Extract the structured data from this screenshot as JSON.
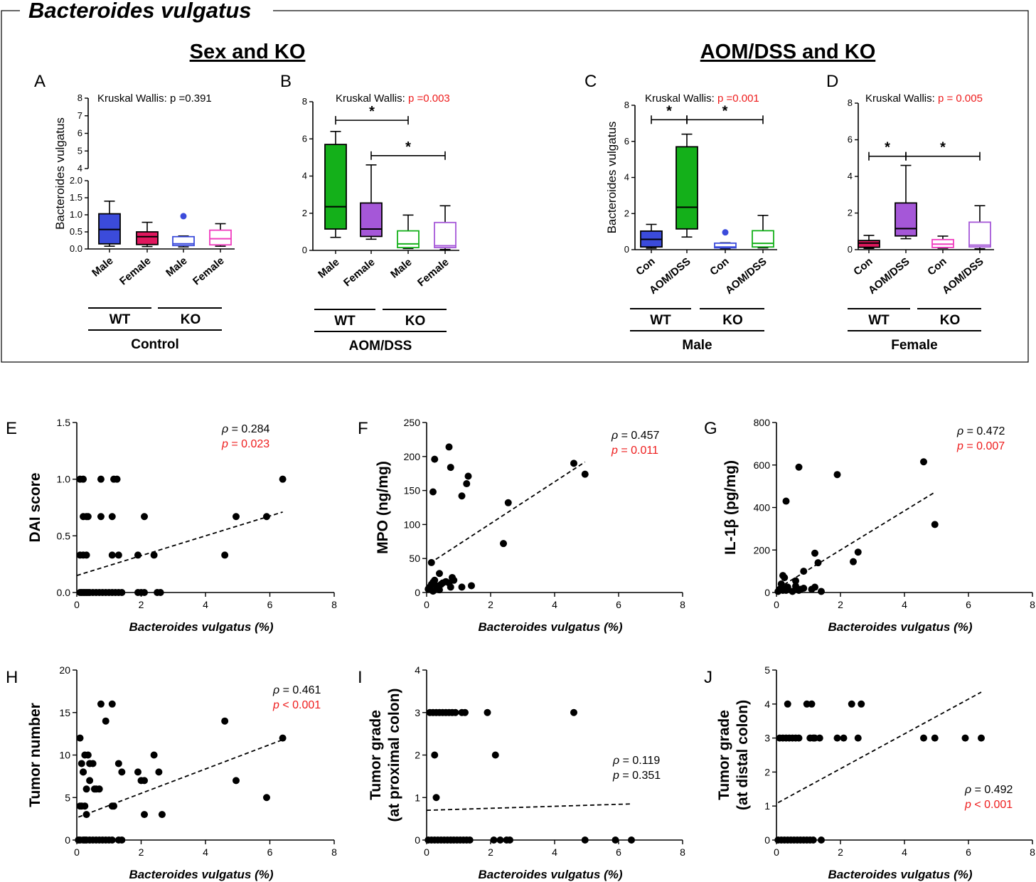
{
  "figure": {
    "title": "Bacteroides vulgatus",
    "section_left": "Sex and KO",
    "section_right": "AOM/DSS and KO"
  },
  "colors": {
    "wt_male": "#3b4bdb",
    "wt_female": "#e0185e",
    "green": "#14b01a",
    "purple": "#a557d8",
    "ko_female": "#f03cbf",
    "red": "#ee1c1c"
  },
  "chart_data": [
    {
      "panel": "A",
      "type": "box",
      "title": "Kruskal Wallis: p =0.391",
      "stat_label": "Kruskal Wallis: ",
      "p_text": "p =0.391",
      "significant": false,
      "ylabel": "Bacteroides vulgatus",
      "broken_axis": true,
      "ylim_lower": [
        0,
        2.0
      ],
      "ylim_upper": [
        4,
        8
      ],
      "yticks_lower": [
        "0.0",
        "0.5",
        "1.0",
        "1.5",
        "2.0"
      ],
      "yticks_upper": [
        "4",
        "5",
        "6",
        "7",
        "8"
      ],
      "categories": [
        "Male",
        "Female",
        "Male",
        "Female"
      ],
      "groups": [
        "WT",
        "KO"
      ],
      "condition": "Control",
      "boxes": [
        {
          "min": 0.08,
          "q1": 0.15,
          "median": 0.57,
          "q3": 1.03,
          "max": 1.4,
          "outliers": [],
          "color": "wt_male",
          "filled": true
        },
        {
          "min": 0.07,
          "q1": 0.13,
          "median": 0.36,
          "q3": 0.5,
          "max": 0.78,
          "outliers": [],
          "color": "wt_female",
          "filled": true
        },
        {
          "min": 0.06,
          "q1": 0.1,
          "median": 0.15,
          "q3": 0.36,
          "max": 0.38,
          "outliers": [
            0.96
          ],
          "color": "wt_male",
          "filled": false
        },
        {
          "min": 0.08,
          "q1": 0.12,
          "median": 0.3,
          "q3": 0.55,
          "max": 0.74,
          "outliers": [],
          "color": "ko_female",
          "filled": false
        }
      ],
      "brackets": []
    },
    {
      "panel": "B",
      "type": "box",
      "title": "Kruskal Wallis: p =0.003",
      "stat_label": "Kruskal Wallis: ",
      "p_text": "p =0.003",
      "significant": true,
      "ylabel": "",
      "broken_axis": false,
      "ylim": [
        0,
        8
      ],
      "yticks": [
        "0",
        "2",
        "4",
        "6",
        "8"
      ],
      "categories": [
        "Male",
        "Female",
        "Male",
        "Female"
      ],
      "groups": [
        "WT",
        "KO"
      ],
      "condition": "AOM/DSS",
      "boxes": [
        {
          "min": 0.7,
          "q1": 1.15,
          "median": 2.35,
          "q3": 5.7,
          "max": 6.4,
          "outliers": [],
          "color": "green",
          "filled": true
        },
        {
          "min": 0.6,
          "q1": 0.75,
          "median": 1.15,
          "q3": 2.55,
          "max": 4.6,
          "outliers": [],
          "color": "purple",
          "filled": true
        },
        {
          "min": 0.1,
          "q1": 0.15,
          "median": 0.35,
          "q3": 1.05,
          "max": 1.9,
          "outliers": [],
          "color": "green",
          "filled": false
        },
        {
          "min": 0.05,
          "q1": 0.15,
          "median": 0.25,
          "q3": 1.5,
          "max": 2.4,
          "outliers": [],
          "color": "purple",
          "filled": false
        }
      ],
      "brackets": [
        {
          "from": 0,
          "to": 2,
          "y": 7.0,
          "label": "*"
        },
        {
          "from": 1,
          "to": 3,
          "y": 5.1,
          "label": "*"
        }
      ]
    },
    {
      "panel": "C",
      "type": "box",
      "title": "Kruskal Wallis: p =0.001",
      "stat_label": "Kruskal Wallis: ",
      "p_text": "p =0.001",
      "significant": true,
      "ylabel": "Bacteroides vulgatus",
      "broken_axis": false,
      "ylim": [
        0,
        8
      ],
      "yticks": [
        "0",
        "2",
        "4",
        "6",
        "8"
      ],
      "categories": [
        "Con",
        "AOM/DSS",
        "Con",
        "AOM/DSS"
      ],
      "groups": [
        "WT",
        "KO"
      ],
      "condition": "Male",
      "boxes": [
        {
          "min": 0.08,
          "q1": 0.15,
          "median": 0.57,
          "q3": 1.03,
          "max": 1.4,
          "outliers": [],
          "color": "wt_male",
          "filled": true
        },
        {
          "min": 0.7,
          "q1": 1.15,
          "median": 2.35,
          "q3": 5.7,
          "max": 6.4,
          "outliers": [],
          "color": "green",
          "filled": true
        },
        {
          "min": 0.06,
          "q1": 0.1,
          "median": 0.15,
          "q3": 0.36,
          "max": 0.38,
          "outliers": [
            0.96
          ],
          "color": "wt_male",
          "filled": false
        },
        {
          "min": 0.1,
          "q1": 0.15,
          "median": 0.35,
          "q3": 1.05,
          "max": 1.9,
          "outliers": [],
          "color": "green",
          "filled": false
        }
      ],
      "brackets": [
        {
          "from": 0,
          "to": 1,
          "y": 7.2,
          "label": "*"
        },
        {
          "from": 1,
          "to": 3,
          "y": 7.2,
          "label": "*"
        }
      ]
    },
    {
      "panel": "D",
      "type": "box",
      "title": "Kruskal Wallis: p = 0.005",
      "stat_label": "Kruskal Wallis: ",
      "p_text": "p = 0.005",
      "significant": true,
      "ylabel": "",
      "broken_axis": false,
      "ylim": [
        0,
        8
      ],
      "yticks": [
        "0",
        "2",
        "4",
        "6",
        "8"
      ],
      "categories": [
        "Con",
        "AOM/DSS",
        "Con",
        "AOM/DSS"
      ],
      "groups": [
        "WT",
        "KO"
      ],
      "condition": "Female",
      "boxes": [
        {
          "min": 0.07,
          "q1": 0.13,
          "median": 0.36,
          "q3": 0.5,
          "max": 0.78,
          "outliers": [],
          "color": "wt_female",
          "filled": true
        },
        {
          "min": 0.6,
          "q1": 0.75,
          "median": 1.15,
          "q3": 2.55,
          "max": 4.6,
          "outliers": [],
          "color": "purple",
          "filled": true
        },
        {
          "min": 0.08,
          "q1": 0.12,
          "median": 0.3,
          "q3": 0.55,
          "max": 0.74,
          "outliers": [],
          "color": "ko_female",
          "filled": false
        },
        {
          "min": 0.05,
          "q1": 0.15,
          "median": 0.25,
          "q3": 1.5,
          "max": 2.4,
          "outliers": [],
          "color": "purple",
          "filled": false
        }
      ],
      "brackets": [
        {
          "from": 0,
          "to": 1,
          "y": 5.1,
          "label": "*"
        },
        {
          "from": 1,
          "to": 3,
          "y": 5.1,
          "label": "*"
        }
      ]
    },
    {
      "panel": "E",
      "type": "scatter",
      "xlabel": "Bacteroides vulgatus (%)",
      "ylabel": "DAI score",
      "xlim": [
        0,
        8
      ],
      "ylim": [
        0,
        1.5
      ],
      "xticks": [
        0,
        2,
        4,
        6,
        8
      ],
      "yticks": [
        0,
        0.5,
        1.0,
        1.5
      ],
      "ytick_labels": [
        "0.0",
        "0.5",
        "1.0",
        "1.5"
      ],
      "rho": "0.284",
      "p": "0.023",
      "p_significant": true,
      "p_op": "=",
      "fit": [
        [
          0,
          0.15
        ],
        [
          6.4,
          0.71
        ]
      ],
      "x": [
        0.1,
        0.15,
        0.2,
        0.25,
        0.3,
        0.35,
        0.4,
        0.5,
        0.6,
        0.7,
        0.8,
        0.9,
        1.0,
        1.1,
        1.2,
        1.3,
        1.4,
        1.9,
        2.0,
        2.1,
        2.5,
        2.6,
        0.1,
        0.2,
        0.3,
        1.1,
        1.3,
        1.9,
        2.4,
        4.6,
        0.2,
        0.3,
        0.35,
        0.75,
        1.1,
        2.1,
        4.95,
        5.9,
        0.1,
        0.2,
        0.75,
        1.15,
        1.25,
        6.4
      ],
      "y": [
        0,
        0,
        0,
        0,
        0,
        0,
        0,
        0,
        0,
        0,
        0,
        0,
        0,
        0,
        0,
        0,
        0,
        0,
        0,
        0,
        0,
        0,
        0.33,
        0.33,
        0.33,
        0.33,
        0.33,
        0.33,
        0.33,
        0.33,
        0.67,
        0.67,
        0.67,
        0.67,
        0.67,
        0.67,
        0.67,
        0.67,
        1,
        1,
        1,
        1,
        1,
        1
      ]
    },
    {
      "panel": "F",
      "type": "scatter",
      "xlabel": "Bacteroides vulgatus (%)",
      "ylabel": "MPO (ng/mg)",
      "xlim": [
        0,
        8
      ],
      "ylim": [
        0,
        250
      ],
      "xticks": [
        0,
        2,
        4,
        6,
        8
      ],
      "yticks": [
        0,
        50,
        100,
        150,
        200,
        250
      ],
      "ytick_labels": [
        "0",
        "50",
        "100",
        "150",
        "200",
        "250"
      ],
      "rho": "0.457",
      "p": "0.011",
      "p_significant": true,
      "p_op": "=",
      "fit": [
        [
          0.1,
          43
        ],
        [
          4.95,
          192
        ]
      ],
      "x": [
        0.05,
        0.1,
        0.15,
        0.2,
        0.25,
        0.3,
        0.35,
        0.4,
        0.45,
        0.5,
        0.6,
        0.7,
        0.75,
        0.8,
        0.85,
        1.1,
        1.4,
        0.2,
        0.4,
        0.15,
        0.25,
        0.2,
        0.7,
        0.75,
        1.1,
        1.25,
        1.3,
        2.4,
        2.55,
        4.6,
        4.95
      ],
      "y": [
        5,
        8,
        12,
        15,
        18,
        10,
        6,
        28,
        12,
        14,
        16,
        14,
        8,
        22,
        18,
        8,
        10,
        2,
        4,
        44,
        196,
        148,
        214,
        184,
        142,
        160,
        171,
        72,
        132,
        190,
        174
      ]
    },
    {
      "panel": "G",
      "type": "scatter",
      "xlabel": "Bacteroides vulgatus (%)",
      "ylabel": "IL-1β (pg/mg)",
      "xlim": [
        0,
        8
      ],
      "ylim": [
        0,
        800
      ],
      "xticks": [
        0,
        2,
        4,
        6,
        8
      ],
      "yticks": [
        0,
        200,
        400,
        600,
        800
      ],
      "ytick_labels": [
        "0",
        "200",
        "400",
        "600",
        "800"
      ],
      "rho": "0.472",
      "p": "0.007",
      "p_significant": true,
      "p_op": "=",
      "fit": [
        [
          0.05,
          20
        ],
        [
          4.95,
          472
        ]
      ],
      "x": [
        0.05,
        0.1,
        0.15,
        0.2,
        0.25,
        0.3,
        0.35,
        0.5,
        0.6,
        0.7,
        0.75,
        0.85,
        1.1,
        1.2,
        1.4,
        0.2,
        0.3,
        0.35,
        0.6,
        0.85,
        1.2,
        1.3,
        2.4,
        2.55,
        4.95,
        0.3,
        0.7,
        1.9,
        4.6
      ],
      "y": [
        5,
        15,
        40,
        10,
        70,
        20,
        25,
        5,
        30,
        10,
        15,
        20,
        15,
        25,
        5,
        80,
        10,
        25,
        55,
        100,
        185,
        140,
        145,
        190,
        320,
        430,
        590,
        555,
        615
      ]
    },
    {
      "panel": "H",
      "type": "scatter",
      "xlabel": "Bacteroides vulgatus (%)",
      "ylabel": "Tumor number",
      "xlim": [
        0,
        8
      ],
      "ylim": [
        0,
        20
      ],
      "xticks": [
        0,
        2,
        4,
        6,
        8
      ],
      "yticks": [
        0,
        5,
        10,
        15,
        20
      ],
      "ytick_labels": [
        "0",
        "5",
        "10",
        "15",
        "20"
      ],
      "rho": "0.461",
      "p": "< 0.001",
      "p_significant": true,
      "p_op": "",
      "fit": [
        [
          0.05,
          2.7
        ],
        [
          6.4,
          11.8
        ]
      ],
      "x": [
        0.05,
        0.1,
        0.2,
        0.25,
        0.3,
        0.4,
        0.5,
        0.6,
        0.7,
        0.8,
        0.9,
        1.0,
        1.1,
        1.3,
        1.4,
        0.1,
        0.15,
        0.25,
        0.3,
        0.4,
        0.55,
        0.6,
        0.7,
        1.1,
        1.15,
        0.1,
        0.2,
        0.25,
        0.35,
        0.5,
        1.3,
        1.4,
        1.9,
        2.0,
        2.1,
        2.1,
        2.4,
        2.55,
        2.65,
        0.15,
        0.2,
        0.3,
        0.4,
        0.75,
        0.9,
        1.1,
        4.6,
        4.95,
        5.9,
        6.4
      ],
      "y": [
        0,
        0,
        0,
        0,
        0,
        0,
        0,
        0,
        0,
        0,
        0,
        0,
        0,
        0,
        0,
        4,
        4,
        4,
        3,
        7,
        6,
        6,
        6,
        4,
        4,
        12,
        8,
        10,
        10,
        9,
        9,
        8,
        8,
        7,
        7,
        3,
        10,
        8,
        3,
        9,
        8,
        6,
        9,
        16,
        14,
        16,
        14,
        7,
        5,
        12
      ]
    },
    {
      "panel": "I",
      "type": "scatter",
      "xlabel": "Bacteroides vulgatus (%)",
      "ylabel": "Tumor grade (at proximal colon)",
      "ylabel_lines": [
        "Tumor grade",
        "(at proximal colon)"
      ],
      "xlim": [
        0,
        8
      ],
      "ylim": [
        0,
        4
      ],
      "xticks": [
        0,
        2,
        4,
        6,
        8
      ],
      "yticks": [
        0,
        1,
        2,
        3,
        4
      ],
      "ytick_labels": [
        "0",
        "1",
        "2",
        "3",
        "4"
      ],
      "rho": "0.119",
      "p": "0.351",
      "p_significant": false,
      "p_op": "=",
      "fit": [
        [
          0,
          0.7
        ],
        [
          6.4,
          0.85
        ]
      ],
      "x": [
        0.05,
        0.15,
        0.25,
        0.35,
        0.45,
        0.55,
        0.65,
        0.75,
        0.85,
        0.95,
        1.05,
        1.15,
        1.25,
        1.35,
        2.1,
        2.3,
        2.5,
        2.6,
        4.95,
        5.9,
        6.4,
        0.3,
        0.25,
        2.15,
        0.1,
        0.2,
        0.3,
        0.4,
        0.5,
        0.6,
        0.7,
        0.8,
        0.9,
        1.1,
        1.2,
        1.9,
        4.6
      ],
      "y": [
        0,
        0,
        0,
        0,
        0,
        0,
        0,
        0,
        0,
        0,
        0,
        0,
        0,
        0,
        0,
        0,
        0,
        0,
        0,
        0,
        0,
        1,
        2,
        2,
        3,
        3,
        3,
        3,
        3,
        3,
        3,
        3,
        3,
        3,
        3,
        3,
        3
      ]
    },
    {
      "panel": "J",
      "type": "scatter",
      "xlabel": "Bacteroides vulgatus (%)",
      "ylabel": "Tumor grade (at distal colon)",
      "ylabel_lines": [
        "Tumor grade",
        "(at distal colon)"
      ],
      "xlim": [
        0,
        8
      ],
      "ylim": [
        0,
        5
      ],
      "xticks": [
        0,
        2,
        4,
        6,
        8
      ],
      "yticks": [
        0,
        1,
        2,
        3,
        4,
        5
      ],
      "ytick_labels": [
        "0",
        "1",
        "2",
        "3",
        "4",
        "5"
      ],
      "rho": "0.492",
      "p": "< 0.001",
      "p_significant": true,
      "p_op": "",
      "fit": [
        [
          0.05,
          1.1
        ],
        [
          6.4,
          4.35
        ]
      ],
      "x": [
        0.05,
        0.15,
        0.25,
        0.35,
        0.45,
        0.55,
        0.65,
        0.75,
        0.85,
        0.95,
        1.05,
        1.15,
        1.4,
        0.1,
        0.2,
        0.3,
        0.4,
        0.5,
        0.6,
        0.7,
        1.05,
        1.15,
        1.2,
        1.35,
        1.9,
        2.1,
        2.55,
        4.6,
        4.95,
        5.9,
        6.4,
        0.35,
        0.95,
        1.1,
        2.35,
        2.65
      ],
      "y": [
        0,
        0,
        0,
        0,
        0,
        0,
        0,
        0,
        0,
        0,
        0,
        0,
        0,
        3,
        3,
        3,
        3,
        3,
        3,
        3,
        3,
        3,
        3,
        3,
        3,
        3,
        3,
        3,
        3,
        3,
        3,
        4,
        4,
        4,
        4,
        4
      ]
    }
  ]
}
